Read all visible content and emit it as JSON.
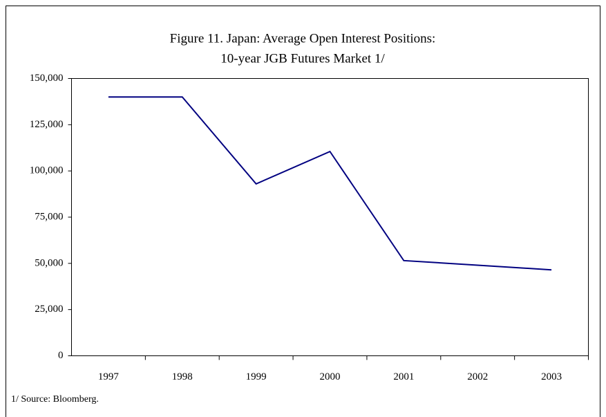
{
  "chart_data": {
    "type": "line",
    "title": [
      "Figure 11. Japan: Average Open Interest Positions:",
      "10-year JGB Futures Market 1/"
    ],
    "categories": [
      "1997",
      "1998",
      "1999",
      "2000",
      "2001",
      "2002",
      "2003"
    ],
    "series": [
      {
        "name": "Average open interest",
        "color": "#000080",
        "values": [
          140000,
          140000,
          93000,
          110500,
          51500,
          49000,
          46500
        ]
      }
    ],
    "ylim": [
      0,
      150000
    ],
    "yticks": [
      0,
      {
        "value": 25000,
        "label": "25,000"
      },
      {
        "value": 50000,
        "label": "50,000"
      },
      {
        "value": 75000,
        "label": "75,000"
      },
      {
        "value": 100000,
        "label": "100,000"
      },
      {
        "value": 125000,
        "label": "125,000"
      },
      {
        "value": 150000,
        "label": "150,000"
      }
    ],
    "grid": false,
    "legend": false,
    "footnote": "1/ Source: Bloomberg."
  }
}
